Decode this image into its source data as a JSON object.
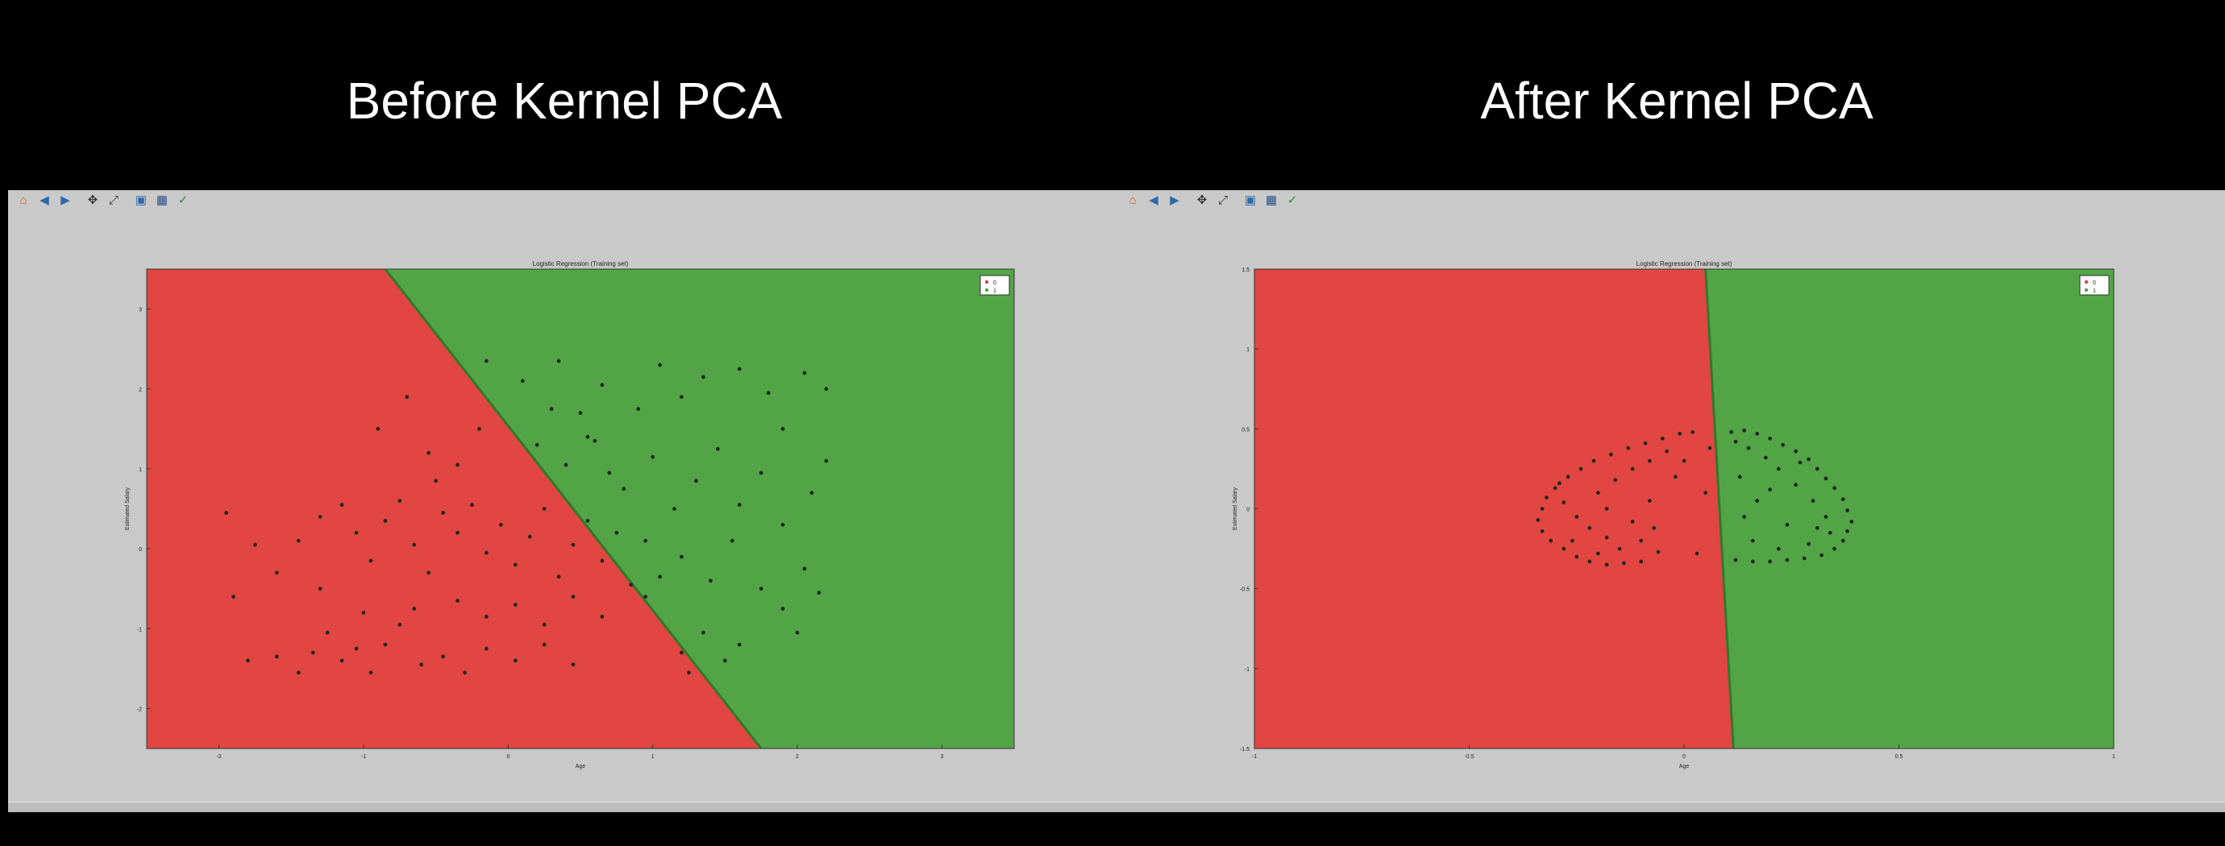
{
  "headings": {
    "left": "Before Kernel PCA",
    "right": "After Kernel PCA"
  },
  "toolbar": {
    "buttons": [
      {
        "icon": "home-icon",
        "glyph": "⌂",
        "color": "#d9531e"
      },
      {
        "icon": "back-icon",
        "glyph": "◀",
        "color": "#2c6aa8"
      },
      {
        "icon": "forward-icon",
        "glyph": "▶",
        "color": "#2c6aa8"
      },
      {
        "icon": "pan-icon",
        "glyph": "✥",
        "color": "#333333"
      },
      {
        "icon": "zoom-icon",
        "glyph": "⤢",
        "color": "#333333"
      },
      {
        "icon": "subplots-icon",
        "glyph": "▣",
        "color": "#2c6aa8"
      },
      {
        "icon": "save-icon",
        "glyph": "▦",
        "color": "#2c4f88"
      },
      {
        "icon": "edit-icon",
        "glyph": "✓",
        "color": "#2e8b3a"
      }
    ]
  },
  "colors": {
    "class0_region": "#e24642",
    "class1_region": "#53a447",
    "point": "#1f2a1f",
    "window_bg": "#c9c9c9"
  },
  "chart_data": [
    {
      "type": "scatter",
      "title": "Logistic Regression (Training set)",
      "xlabel": "Age",
      "ylabel": "Estimated Salary",
      "xlim": [
        -2.5,
        3.5
      ],
      "ylim": [
        -2.5,
        3.5
      ],
      "xticks": [
        -2,
        -1,
        0,
        1,
        2,
        3
      ],
      "yticks": [
        -2,
        -1,
        0,
        1,
        2,
        3
      ],
      "legend": {
        "placement": "top-right",
        "entries": [
          "0",
          "1"
        ]
      },
      "decision_boundary": {
        "x_at_top": -0.85,
        "x_at_bottom": 1.75
      },
      "points": [
        [
          -1.95,
          0.45
        ],
        [
          -1.75,
          0.05
        ],
        [
          -1.9,
          -0.6
        ],
        [
          -1.8,
          -1.4
        ],
        [
          -1.6,
          -1.35
        ],
        [
          -1.45,
          -1.55
        ],
        [
          -1.35,
          -1.3
        ],
        [
          -1.25,
          -1.05
        ],
        [
          -1.15,
          -1.4
        ],
        [
          -1.05,
          -1.25
        ],
        [
          -0.95,
          -1.55
        ],
        [
          -0.85,
          -1.2
        ],
        [
          -0.75,
          -0.95
        ],
        [
          -0.6,
          -1.45
        ],
        [
          -0.45,
          -1.35
        ],
        [
          -0.3,
          -1.55
        ],
        [
          -0.15,
          -1.25
        ],
        [
          0.05,
          -1.4
        ],
        [
          0.25,
          -1.2
        ],
        [
          0.45,
          -1.45
        ],
        [
          -1.6,
          -0.3
        ],
        [
          -1.45,
          0.1
        ],
        [
          -1.3,
          0.4
        ],
        [
          -1.15,
          0.55
        ],
        [
          -1.05,
          0.2
        ],
        [
          -0.95,
          -0.15
        ],
        [
          -0.85,
          0.35
        ],
        [
          -0.75,
          0.6
        ],
        [
          -0.65,
          0.05
        ],
        [
          -0.55,
          -0.3
        ],
        [
          -0.45,
          0.45
        ],
        [
          -0.35,
          0.2
        ],
        [
          -0.25,
          0.55
        ],
        [
          -0.15,
          -0.05
        ],
        [
          -0.05,
          0.3
        ],
        [
          0.05,
          -0.2
        ],
        [
          0.15,
          0.15
        ],
        [
          0.25,
          0.5
        ],
        [
          0.35,
          -0.35
        ],
        [
          0.45,
          0.05
        ],
        [
          0.55,
          0.35
        ],
        [
          0.65,
          -0.15
        ],
        [
          0.75,
          0.2
        ],
        [
          0.85,
          -0.45
        ],
        [
          0.95,
          0.1
        ],
        [
          -0.35,
          -0.65
        ],
        [
          -0.15,
          -0.85
        ],
        [
          0.05,
          -0.7
        ],
        [
          0.25,
          -0.95
        ],
        [
          0.45,
          -0.6
        ],
        [
          0.65,
          -0.85
        ],
        [
          -0.65,
          -0.75
        ],
        [
          -1.0,
          -0.8
        ],
        [
          -1.3,
          -0.5
        ],
        [
          -0.9,
          1.5
        ],
        [
          -0.7,
          1.9
        ],
        [
          -0.55,
          1.2
        ],
        [
          -0.35,
          1.05
        ],
        [
          -0.2,
          1.5
        ],
        [
          -0.5,
          0.85
        ],
        [
          1.2,
          -1.3
        ],
        [
          1.35,
          -1.05
        ],
        [
          1.5,
          -1.4
        ],
        [
          1.25,
          -1.55
        ],
        [
          1.6,
          -1.2
        ],
        [
          -0.15,
          2.35
        ],
        [
          0.1,
          2.1
        ],
        [
          0.35,
          2.35
        ],
        [
          0.5,
          1.7
        ],
        [
          0.65,
          2.05
        ],
        [
          0.9,
          1.75
        ],
        [
          1.05,
          2.3
        ],
        [
          1.2,
          1.9
        ],
        [
          1.35,
          2.15
        ],
        [
          1.6,
          2.25
        ],
        [
          1.8,
          1.95
        ],
        [
          2.05,
          2.2
        ],
        [
          0.2,
          1.3
        ],
        [
          0.4,
          1.05
        ],
        [
          0.55,
          1.4
        ],
        [
          0.8,
          0.75
        ],
        [
          1.0,
          1.15
        ],
        [
          1.15,
          0.5
        ],
        [
          1.3,
          0.85
        ],
        [
          1.45,
          1.25
        ],
        [
          1.6,
          0.55
        ],
        [
          1.75,
          0.95
        ],
        [
          1.9,
          0.3
        ],
        [
          2.1,
          0.7
        ],
        [
          2.2,
          1.1
        ],
        [
          2.05,
          -0.25
        ],
        [
          1.9,
          -0.75
        ],
        [
          2.15,
          -0.55
        ],
        [
          2.0,
          -1.05
        ],
        [
          1.05,
          -0.35
        ],
        [
          1.2,
          -0.1
        ],
        [
          0.95,
          -0.6
        ],
        [
          1.4,
          -0.4
        ],
        [
          1.75,
          -0.5
        ],
        [
          1.55,
          0.1
        ],
        [
          0.7,
          0.95
        ],
        [
          0.6,
          1.35
        ],
        [
          0.3,
          1.75
        ],
        [
          1.9,
          1.5
        ],
        [
          2.2,
          2.0
        ]
      ]
    },
    {
      "type": "scatter",
      "title": "Logistic Regression (Training set)",
      "xlabel": "Age",
      "ylabel": "Estimated Salary",
      "xlim": [
        -1.0,
        1.0
      ],
      "ylim": [
        -1.5,
        1.5
      ],
      "xticks": [
        -1.0,
        -0.5,
        0.0,
        0.5,
        1.0
      ],
      "yticks": [
        -1.5,
        -1.0,
        -0.5,
        0.0,
        0.5,
        1.0,
        1.5
      ],
      "legend": {
        "placement": "top-right",
        "entries": [
          "0",
          "1"
        ]
      },
      "decision_boundary": {
        "x_at_top": 0.05,
        "x_at_bottom": 0.115
      },
      "points": [
        [
          -0.33,
          0.0
        ],
        [
          -0.34,
          -0.07
        ],
        [
          -0.33,
          -0.14
        ],
        [
          -0.31,
          -0.2
        ],
        [
          -0.28,
          -0.25
        ],
        [
          -0.25,
          -0.3
        ],
        [
          -0.22,
          -0.33
        ],
        [
          -0.18,
          -0.35
        ],
        [
          -0.14,
          -0.34
        ],
        [
          -0.1,
          -0.33
        ],
        [
          -0.32,
          0.07
        ],
        [
          -0.3,
          0.13
        ],
        [
          -0.27,
          0.2
        ],
        [
          -0.24,
          0.25
        ],
        [
          -0.21,
          0.3
        ],
        [
          -0.17,
          0.34
        ],
        [
          -0.13,
          0.38
        ],
        [
          -0.09,
          0.41
        ],
        [
          -0.05,
          0.44
        ],
        [
          -0.01,
          0.47
        ],
        [
          0.02,
          0.48
        ],
        [
          -0.28,
          0.04
        ],
        [
          -0.25,
          -0.05
        ],
        [
          -0.22,
          -0.12
        ],
        [
          -0.18,
          -0.18
        ],
        [
          -0.2,
          0.1
        ],
        [
          -0.16,
          0.18
        ],
        [
          -0.12,
          0.25
        ],
        [
          -0.08,
          0.3
        ],
        [
          -0.04,
          0.36
        ],
        [
          -0.15,
          -0.25
        ],
        [
          -0.1,
          -0.2
        ],
        [
          -0.06,
          -0.27
        ],
        [
          -0.12,
          -0.08
        ],
        [
          -0.08,
          0.05
        ],
        [
          -0.02,
          0.2
        ],
        [
          0.0,
          0.3
        ],
        [
          0.03,
          -0.28
        ],
        [
          0.05,
          0.1
        ],
        [
          -0.26,
          -0.2
        ],
        [
          -0.2,
          -0.28
        ],
        [
          -0.29,
          0.16
        ],
        [
          0.06,
          0.38
        ],
        [
          -0.07,
          -0.12
        ],
        [
          -0.18,
          0.0
        ],
        [
          0.11,
          0.48
        ],
        [
          0.14,
          0.49
        ],
        [
          0.17,
          0.47
        ],
        [
          0.2,
          0.44
        ],
        [
          0.23,
          0.4
        ],
        [
          0.26,
          0.36
        ],
        [
          0.29,
          0.31
        ],
        [
          0.31,
          0.25
        ],
        [
          0.33,
          0.19
        ],
        [
          0.35,
          0.13
        ],
        [
          0.37,
          0.06
        ],
        [
          0.38,
          -0.01
        ],
        [
          0.39,
          -0.08
        ],
        [
          0.38,
          -0.14
        ],
        [
          0.37,
          -0.2
        ],
        [
          0.35,
          -0.25
        ],
        [
          0.32,
          -0.29
        ],
        [
          0.28,
          -0.31
        ],
        [
          0.24,
          -0.32
        ],
        [
          0.2,
          -0.33
        ],
        [
          0.16,
          -0.33
        ],
        [
          0.12,
          -0.32
        ],
        [
          0.15,
          0.38
        ],
        [
          0.19,
          0.32
        ],
        [
          0.22,
          0.25
        ],
        [
          0.26,
          0.15
        ],
        [
          0.3,
          0.05
        ],
        [
          0.33,
          -0.05
        ],
        [
          0.34,
          -0.15
        ],
        [
          0.29,
          -0.22
        ],
        [
          0.22,
          -0.25
        ],
        [
          0.16,
          -0.2
        ],
        [
          0.13,
          0.2
        ],
        [
          0.17,
          0.05
        ],
        [
          0.24,
          -0.1
        ],
        [
          0.27,
          0.29
        ],
        [
          0.2,
          0.12
        ],
        [
          0.14,
          -0.05
        ],
        [
          0.31,
          -0.12
        ],
        [
          0.12,
          0.42
        ]
      ]
    }
  ]
}
